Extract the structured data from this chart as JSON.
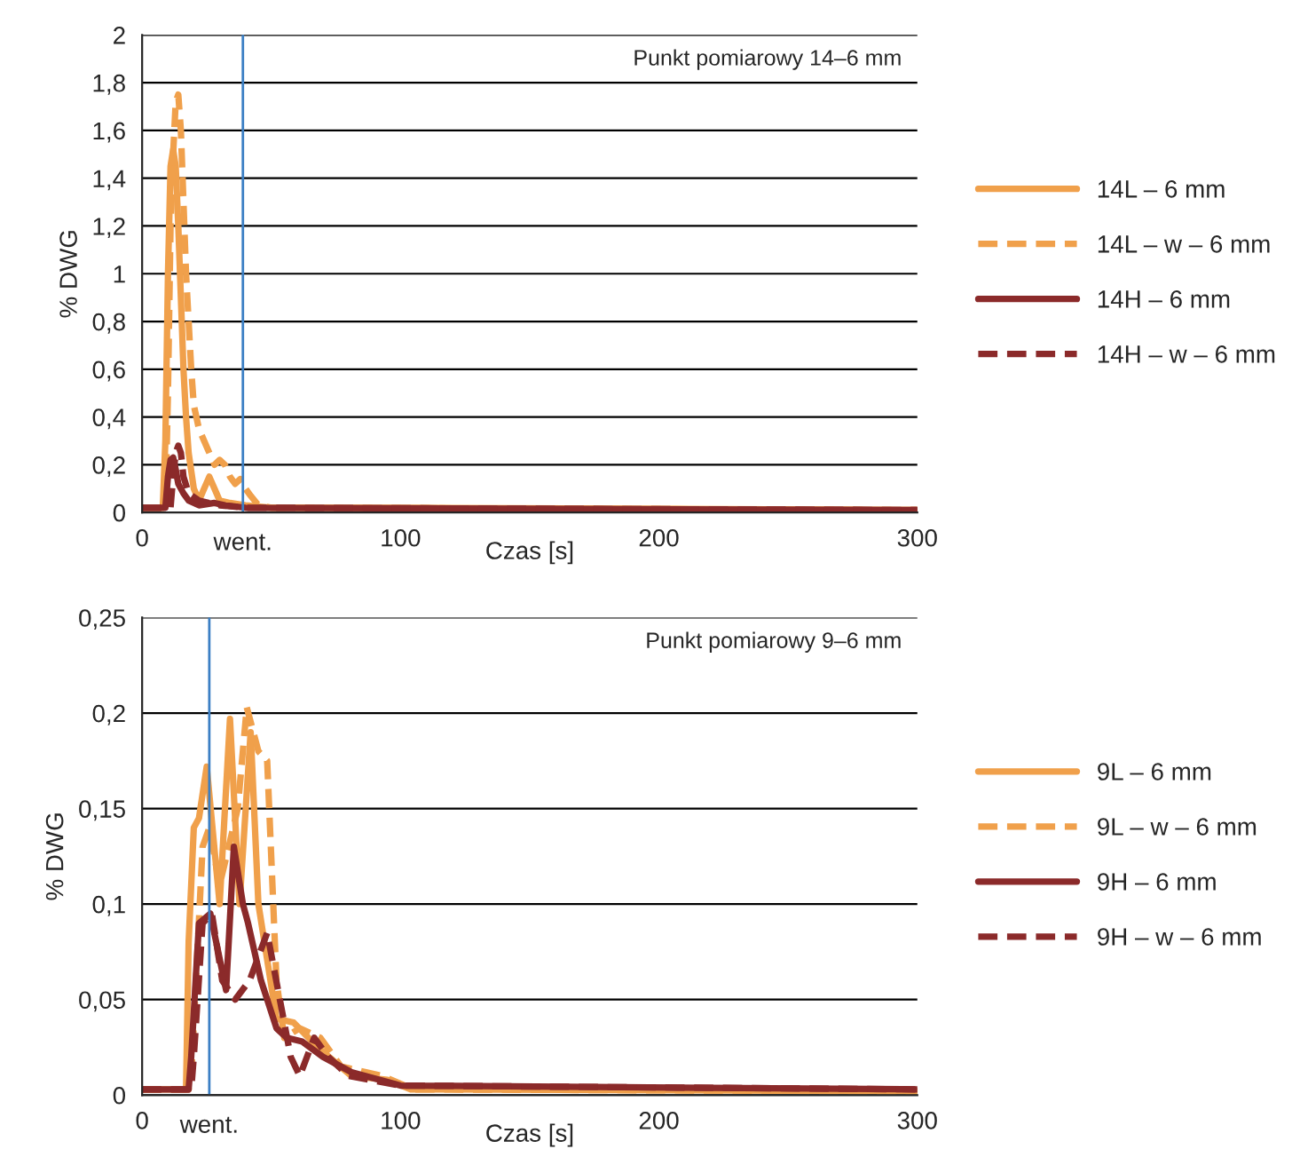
{
  "chart_data": [
    {
      "type": "line",
      "xlabel": "Czas [s]",
      "ylabel": "% DWG",
      "annotations": [
        "Punkt pomiarowy 14–6 mm"
      ],
      "xlim": [
        0,
        300
      ],
      "xticks": [
        0,
        100,
        200,
        300
      ],
      "ylim": [
        0,
        2
      ],
      "yticks": [
        0,
        {
          "value": 0.2,
          "label": "0,2"
        },
        {
          "value": 0.4,
          "label": "0,4"
        },
        {
          "value": 0.6,
          "label": "0,6"
        },
        {
          "value": 0.8,
          "label": "0,8"
        },
        1,
        {
          "value": 1.2,
          "label": "1,2"
        },
        {
          "value": 1.4,
          "label": "1,4"
        },
        {
          "value": 1.6,
          "label": "1,6"
        },
        {
          "value": 1.8,
          "label": "1,8"
        },
        2
      ],
      "grid": "y",
      "legend": "right",
      "ref_lines": [
        {
          "axis": "x",
          "value": 39,
          "label": "went.",
          "color": "#3b7fc4"
        }
      ],
      "series": [
        {
          "name": "14L – 6 mm",
          "color": "#f0a04b",
          "line_style": "solid",
          "x": [
            0,
            8,
            9,
            10,
            11,
            12,
            13,
            14,
            15,
            16,
            17,
            18,
            20,
            22,
            24,
            26,
            28,
            30,
            34,
            40,
            50,
            100,
            300
          ],
          "values": [
            0.02,
            0.02,
            0.3,
            1.0,
            1.45,
            1.52,
            1.45,
            1.2,
            0.9,
            0.6,
            0.4,
            0.25,
            0.1,
            0.05,
            0.1,
            0.15,
            0.1,
            0.05,
            0.04,
            0.03,
            0.02,
            0.02,
            0.01
          ]
        },
        {
          "name": "14L – w – 6 mm",
          "color": "#f0a04b",
          "line_style": "dashed",
          "x": [
            0,
            9,
            10,
            11,
            12,
            13,
            14,
            15,
            16,
            17,
            18,
            19,
            20,
            22,
            24,
            26,
            28,
            30,
            32,
            34,
            36,
            38,
            40,
            42,
            45,
            50,
            300
          ],
          "values": [
            0.02,
            0.02,
            0.5,
            1.2,
            1.5,
            1.72,
            1.75,
            1.6,
            1.3,
            1.0,
            0.8,
            0.6,
            0.45,
            0.35,
            0.3,
            0.25,
            0.2,
            0.22,
            0.2,
            0.15,
            0.12,
            0.14,
            0.1,
            0.07,
            0.03,
            0.02,
            0.01
          ]
        },
        {
          "name": "14H – 6 mm",
          "color": "#8b2a2a",
          "line_style": "solid",
          "x": [
            0,
            9,
            10,
            11,
            12,
            13,
            14,
            16,
            18,
            22,
            28,
            32,
            40,
            300
          ],
          "values": [
            0.02,
            0.02,
            0.15,
            0.22,
            0.23,
            0.18,
            0.12,
            0.08,
            0.05,
            0.03,
            0.04,
            0.03,
            0.02,
            0.01
          ]
        },
        {
          "name": "14H – w – 6 mm",
          "color": "#8b2a2a",
          "line_style": "dashed",
          "x": [
            0,
            11,
            12,
            13,
            14,
            15,
            16,
            18,
            22,
            26,
            30,
            40,
            300
          ],
          "values": [
            0.02,
            0.02,
            0.15,
            0.25,
            0.28,
            0.25,
            0.15,
            0.08,
            0.05,
            0.04,
            0.03,
            0.02,
            0.01
          ]
        }
      ]
    },
    {
      "type": "line",
      "xlabel": "Czas [s]",
      "ylabel": "% DWG",
      "annotations": [
        "Punkt pomiarowy 9–6 mm"
      ],
      "xlim": [
        0,
        300
      ],
      "xticks": [
        0,
        100,
        200,
        300
      ],
      "ylim": [
        0,
        0.25
      ],
      "yticks": [
        0,
        {
          "value": 0.05,
          "label": "0,05"
        },
        {
          "value": 0.1,
          "label": "0,1"
        },
        {
          "value": 0.15,
          "label": "0,15"
        },
        {
          "value": 0.2,
          "label": "0,2"
        },
        {
          "value": 0.25,
          "label": "0,25"
        }
      ],
      "grid": "y",
      "legend": "right",
      "ref_lines": [
        {
          "axis": "x",
          "value": 26,
          "label": "went.",
          "color": "#3b7fc4"
        }
      ],
      "series": [
        {
          "name": "9L – 6 mm",
          "color": "#f0a04b",
          "line_style": "solid",
          "x": [
            0,
            17,
            18,
            20,
            22,
            25,
            30,
            34,
            37.7,
            42,
            45,
            52,
            58.6,
            68,
            81,
            95,
            104,
            300
          ],
          "values": [
            0.003,
            0.003,
            0.08,
            0.14,
            0.145,
            0.172,
            0.1,
            0.197,
            0.1,
            0.19,
            0.1,
            0.04,
            0.038,
            0.025,
            0.01,
            0.008,
            0.003,
            0.002
          ]
        },
        {
          "name": "9L – w – 6 mm",
          "color": "#f0a04b",
          "line_style": "dashed",
          "x": [
            0,
            18,
            19,
            23.4,
            26,
            30,
            37,
            40.5,
            45,
            48.4,
            52,
            55,
            61,
            69,
            77,
            93,
            105,
            300
          ],
          "values": [
            0.003,
            0.003,
            0.01,
            0.13,
            0.14,
            0.11,
            0.15,
            0.203,
            0.18,
            0.175,
            0.06,
            0.03,
            0.035,
            0.03,
            0.015,
            0.01,
            0.003,
            0.002
          ]
        },
        {
          "name": "9H – 6 mm",
          "color": "#8b2a2a",
          "line_style": "solid",
          "x": [
            0,
            18,
            19,
            22,
            26.4,
            32.5,
            35.5,
            39,
            41,
            46,
            52,
            56,
            62,
            70,
            81,
            100,
            300
          ],
          "values": [
            0.003,
            0.003,
            0.02,
            0.09,
            0.095,
            0.055,
            0.13,
            0.1,
            0.09,
            0.06,
            0.035,
            0.03,
            0.028,
            0.02,
            0.012,
            0.005,
            0.003
          ]
        },
        {
          "name": "9H – w – 6 mm",
          "color": "#8b2a2a",
          "line_style": "dashed",
          "x": [
            0,
            19,
            20,
            23.4,
            27,
            31,
            36,
            41.6,
            48.4,
            50.5,
            57.5,
            61,
            66.6,
            72,
            80,
            100,
            300
          ],
          "values": [
            0.003,
            0.003,
            0.02,
            0.09,
            0.095,
            0.06,
            0.05,
            0.06,
            0.085,
            0.07,
            0.02,
            0.01,
            0.03,
            0.02,
            0.01,
            0.005,
            0.003
          ]
        }
      ]
    }
  ]
}
